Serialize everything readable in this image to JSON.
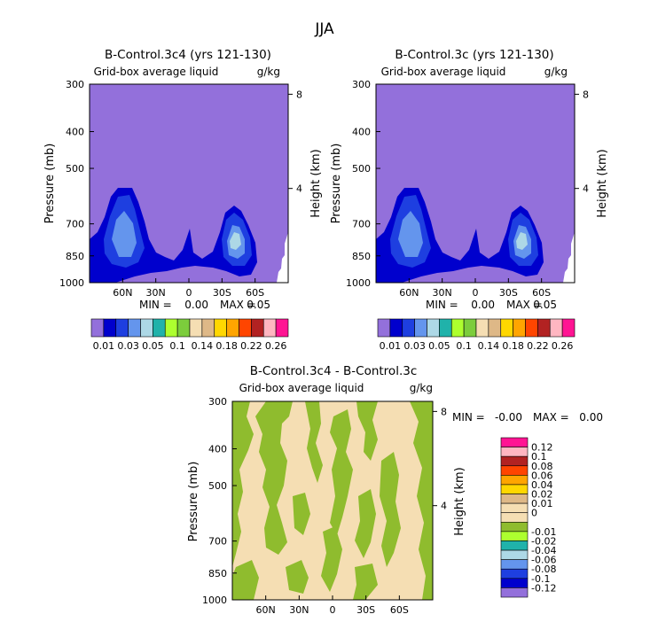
{
  "page": {
    "season_title": "JJA"
  },
  "panels": [
    {
      "title": "B-Control.3c4 (yrs 121-130)",
      "variable": "Grid-box average liquid",
      "units": "g/kg",
      "ylabel_left": "Pressure (mb)",
      "ylabel_right": "Height (km)",
      "min_label": "MIN =",
      "min_value": "0.00",
      "max_label": "MAX =",
      "max_value": "0.05"
    },
    {
      "title": "B-Control.3c (yrs 121-130)",
      "variable": "Grid-box average liquid",
      "units": "g/kg",
      "ylabel_left": "Pressure (mb)",
      "ylabel_right": "Height (km)",
      "min_label": "MIN =",
      "min_value": "0.00",
      "max_label": "MAX =",
      "max_value": "0.05"
    },
    {
      "title": "B-Control.3c4 - B-Control.3c",
      "variable": "Grid-box average liquid",
      "units": "g/kg",
      "ylabel_left": "Pressure (mb)",
      "ylabel_right": "Height (km)",
      "min_label": "MIN =",
      "min_value": "-0.00",
      "max_label": "MAX =",
      "max_value": "0.00"
    }
  ],
  "chart_data": [
    {
      "type": "heatmap",
      "title": "B-Control.3c4 (yrs 121-130)",
      "x_ticks": [
        "60N",
        "30N",
        "0",
        "30S",
        "60S"
      ],
      "x_tick_lat": [
        60,
        30,
        0,
        -30,
        -60
      ],
      "xlim_lat": [
        90,
        -90
      ],
      "y_ticks": [
        "300",
        "400",
        "500",
        "700",
        "850",
        "1000"
      ],
      "y_tick_mb": [
        300,
        400,
        500,
        700,
        850,
        1000
      ],
      "ylim_mb": [
        1000,
        300
      ],
      "right_ticks": [
        "8",
        "4"
      ],
      "right_tick_km": [
        8,
        4
      ],
      "colorbar_levels": [
        "0.01",
        "0.03",
        "0.05",
        "0.1",
        "0.14",
        "0.18",
        "0.22",
        "0.26"
      ],
      "colorbar_colors": [
        "#9370db",
        "#0000cd",
        "#1e3fe0",
        "#6495ed",
        "#add8e6",
        "#20b2aa",
        "#adff2f",
        "#7ccd3c",
        "#f5deb3",
        "#deb887",
        "#ffd700",
        "#ffa500",
        "#ff4500",
        "#b22222",
        "#ffb6c1",
        "#ff1493"
      ],
      "min": 0.0,
      "max": 0.05
    },
    {
      "type": "heatmap",
      "title": "B-Control.3c (yrs 121-130)",
      "x_ticks": [
        "60N",
        "30N",
        "0",
        "30S",
        "60S"
      ],
      "x_tick_lat": [
        60,
        30,
        0,
        -30,
        -60
      ],
      "xlim_lat": [
        90,
        -90
      ],
      "y_ticks": [
        "300",
        "400",
        "500",
        "700",
        "850",
        "1000"
      ],
      "y_tick_mb": [
        300,
        400,
        500,
        700,
        850,
        1000
      ],
      "ylim_mb": [
        1000,
        300
      ],
      "right_ticks": [
        "8",
        "4"
      ],
      "right_tick_km": [
        8,
        4
      ],
      "colorbar_levels": [
        "0.01",
        "0.03",
        "0.05",
        "0.1",
        "0.14",
        "0.18",
        "0.22",
        "0.26"
      ],
      "colorbar_colors": [
        "#9370db",
        "#0000cd",
        "#1e3fe0",
        "#6495ed",
        "#add8e6",
        "#20b2aa",
        "#adff2f",
        "#7ccd3c",
        "#f5deb3",
        "#deb887",
        "#ffd700",
        "#ffa500",
        "#ff4500",
        "#b22222",
        "#ffb6c1",
        "#ff1493"
      ],
      "min": 0.0,
      "max": 0.05
    },
    {
      "type": "heatmap",
      "title": "B-Control.3c4 - B-Control.3c",
      "x_ticks": [
        "60N",
        "30N",
        "0",
        "30S",
        "60S"
      ],
      "x_tick_lat": [
        60,
        30,
        0,
        -30,
        -60
      ],
      "xlim_lat": [
        90,
        -90
      ],
      "y_ticks": [
        "300",
        "400",
        "500",
        "700",
        "850",
        "1000"
      ],
      "y_tick_mb": [
        300,
        400,
        500,
        700,
        850,
        1000
      ],
      "ylim_mb": [
        1000,
        300
      ],
      "right_ticks": [
        "8",
        "4"
      ],
      "right_tick_km": [
        8,
        4
      ],
      "colorbar_levels": [
        "0.12",
        "0.1",
        "0.08",
        "0.06",
        "0.04",
        "0.02",
        "0.01",
        "0",
        "-0.01",
        "-0.02",
        "-0.04",
        "-0.06",
        "-0.08",
        "-0.1",
        "-0.12"
      ],
      "colorbar_colors": [
        "#ff1493",
        "#ffb6c1",
        "#b22222",
        "#ff4500",
        "#ffa500",
        "#ffd700",
        "#deb887",
        "#f5deb3",
        "#f5deb3",
        "#8fbc2e",
        "#adff2f",
        "#20b2aa",
        "#add8e6",
        "#6495ed",
        "#1e3fe0",
        "#0000cd",
        "#9370db"
      ],
      "min": -0.0,
      "max": 0.0
    }
  ]
}
